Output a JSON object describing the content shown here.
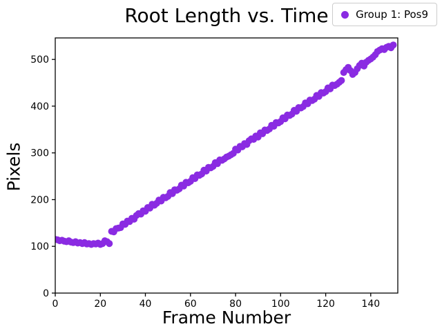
{
  "chart_data": {
    "type": "scatter",
    "title": "Root Length vs. Time",
    "xlabel": "Frame Number",
    "ylabel": "Pixels",
    "legend": [
      {
        "label": "Group 1: Pos9",
        "color": "#8A2BE2"
      }
    ],
    "legend_position": "upper-right, outside axes at figure top",
    "grid": false,
    "marker": {
      "shape": "circle",
      "color": "#8A2BE2",
      "radius_px": 5
    },
    "axis_color": "#000000",
    "background_color": "#ffffff",
    "xlim": [
      0,
      152
    ],
    "ylim": [
      0,
      546
    ],
    "xticks": [
      0,
      20,
      40,
      60,
      80,
      100,
      120,
      140
    ],
    "yticks": [
      0,
      100,
      200,
      300,
      400,
      500
    ],
    "x_start": 0,
    "x_step": 1,
    "series": [
      {
        "name": "Group 1: Pos9",
        "values": [
          115,
          114,
          112,
          113,
          111,
          110,
          112,
          109,
          108,
          110,
          107,
          108,
          106,
          108,
          105,
          106,
          104,
          106,
          105,
          107,
          104,
          106,
          112,
          110,
          106,
          132,
          131,
          138,
          139,
          140,
          148,
          147,
          154,
          153,
          160,
          158,
          166,
          170,
          169,
          176,
          175,
          183,
          182,
          190,
          188,
          192,
          199,
          197,
          205,
          204,
          207,
          215,
          213,
          221,
          220,
          223,
          231,
          229,
          237,
          236,
          239,
          247,
          245,
          253,
          252,
          255,
          263,
          261,
          269,
          268,
          271,
          279,
          277,
          285,
          284,
          287,
          291,
          293,
          296,
          299,
          308,
          306,
          314,
          313,
          320,
          318,
          326,
          330,
          329,
          336,
          334,
          343,
          341,
          349,
          348,
          351,
          359,
          357,
          365,
          364,
          367,
          375,
          373,
          381,
          380,
          383,
          391,
          389,
          397,
          396,
          399,
          407,
          405,
          413,
          412,
          415,
          423,
          421,
          429,
          428,
          431,
          439,
          437,
          445,
          444,
          447,
          451,
          455,
          472,
          478,
          483,
          476,
          468,
          472,
          480,
          487,
          492,
          486,
          494,
          498,
          501,
          505,
          510,
          517,
          520,
          523,
          521,
          526,
          528,
          525,
          531
        ]
      }
    ]
  }
}
